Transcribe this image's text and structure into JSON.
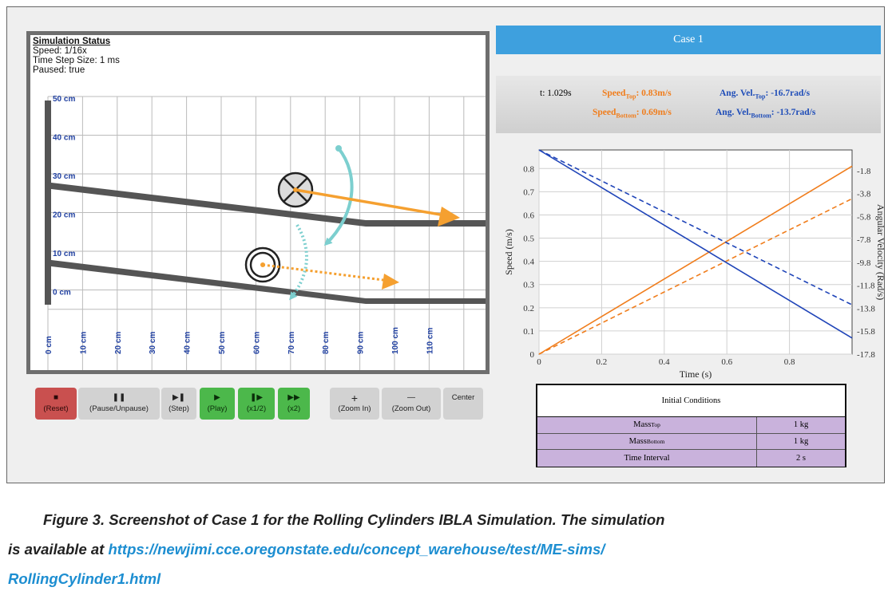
{
  "simulation": {
    "status": {
      "title": "Simulation Status",
      "speed": "Speed: 1/16x",
      "time_step": "Time Step Size: 1 ms",
      "paused": "Paused: true"
    },
    "y_labels": [
      "50 cm",
      "40 cm",
      "30 cm",
      "20 cm",
      "10 cm",
      "0 cm"
    ],
    "x_labels": [
      "0 cm",
      "10 cm",
      "20 cm",
      "30 cm",
      "40 cm",
      "50 cm",
      "60 cm",
      "70 cm",
      "80 cm",
      "90 cm",
      "100 cm",
      "110 cm"
    ],
    "colors": {
      "velocity": "#f5a030",
      "angular": "#7ccfcf",
      "ramp": "#555555",
      "grid": "#bbbbbb"
    }
  },
  "controls": {
    "reset": {
      "glyph": "■",
      "label": "(Reset)"
    },
    "pause": {
      "glyph": "❚❚",
      "label": "(Pause/Unpause)"
    },
    "step": {
      "glyph": "▶❚",
      "label": "(Step)"
    },
    "play": {
      "glyph": "▶",
      "label": "(Play)"
    },
    "half": {
      "glyph": "❚▶",
      "label": "(x1/2)"
    },
    "double": {
      "glyph": "▶▶",
      "label": "(x2)"
    },
    "zoom_in": {
      "glyph": "+",
      "label": "(Zoom In)"
    },
    "zoom_out": {
      "glyph": "—",
      "label": "(Zoom Out)"
    },
    "center": {
      "label": "Center"
    }
  },
  "case_title": "Case 1",
  "readout": {
    "time": "t: 1.029s",
    "speed_top_label": "Speed",
    "speed_top_sub": "Top",
    "speed_top_value": ": 0.83m/s",
    "angvel_top_label": "Ang. Vel.",
    "angvel_top_sub": "Top",
    "angvel_top_value": ": -16.7rad/s",
    "speed_bottom_label": "Speed",
    "speed_bottom_sub": "Bottom",
    "speed_bottom_value": ": 0.69m/s",
    "angvel_bottom_label": "Ang. Vel.",
    "angvel_bottom_sub": "Bottom",
    "angvel_bottom_value": ": -13.7rad/s"
  },
  "chart_data": {
    "type": "line",
    "xlabel": "Time (s)",
    "ylabel": "Speed (m/s)",
    "y2label": "Angular Velocity (Rad/s)",
    "xlim": [
      0,
      1
    ],
    "ylim": [
      0,
      0.88
    ],
    "y2lim": [
      -17.8,
      0
    ],
    "x_ticks": [
      "0",
      "0.2",
      "0.4",
      "0.6",
      "0.8"
    ],
    "y_ticks": [
      "0",
      "0.1",
      "0.2",
      "0.3",
      "0.4",
      "0.5",
      "0.6",
      "0.7",
      "0.8"
    ],
    "y2_ticks": [
      "-1.8",
      "-3.8",
      "-5.8",
      "-7.8",
      "-9.8",
      "-11.8",
      "-13.8",
      "-15.8",
      "-17.8"
    ],
    "grid": true,
    "series": [
      {
        "axis": "left",
        "color": "#f07d1c",
        "dash": false,
        "x": [
          0,
          1
        ],
        "y": [
          0,
          0.81
        ]
      },
      {
        "axis": "left",
        "color": "#f07d1c",
        "dash": true,
        "x": [
          0,
          1
        ],
        "y": [
          0,
          0.67
        ]
      },
      {
        "axis": "right",
        "color": "#1f44b8",
        "dash": false,
        "x": [
          0,
          1
        ],
        "y": [
          0,
          -16.4
        ]
      },
      {
        "axis": "right",
        "color": "#1f44b8",
        "dash": true,
        "x": [
          0,
          1
        ],
        "y": [
          0,
          -13.5
        ]
      }
    ]
  },
  "initial_conditions": {
    "title": "Initial Conditions",
    "rows": [
      {
        "label": "Mass",
        "sub": "Top",
        "value": "1 kg"
      },
      {
        "label": "Mass",
        "sub": "Bottom",
        "value": "1 kg"
      },
      {
        "label": "Time Interval",
        "sub": "",
        "value": "2 s"
      }
    ]
  },
  "caption": {
    "line1": "Figure 3. Screenshot of Case 1 for the Rolling Cylinders IBLA Simulation. The simulation",
    "line2_prefix": "is available at ",
    "link_part1": "https://newjimi.cce.oregonstate.edu/concept_warehouse/test/ME-sims/",
    "link_part2": "RollingCylinder1.html"
  }
}
